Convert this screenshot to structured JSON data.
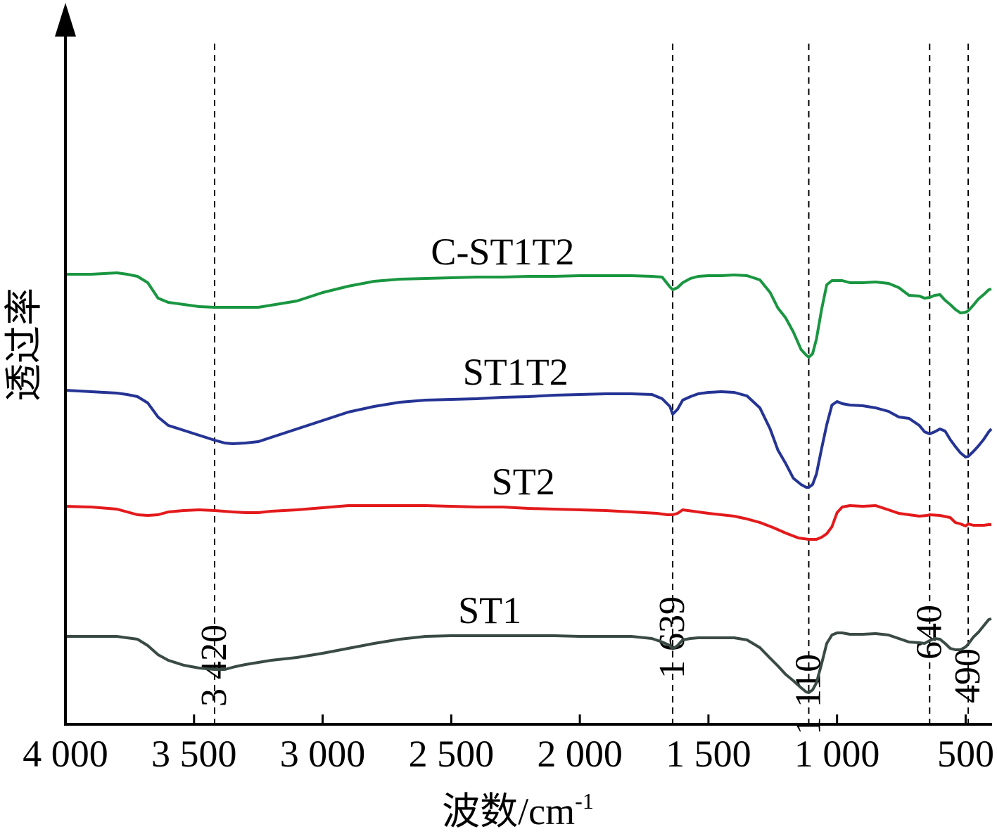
{
  "chart_data": {
    "type": "line",
    "title": "",
    "xlabel": "波数/cm",
    "xlabel_superscript": "-1",
    "ylabel": "透过率",
    "xlim": [
      4000,
      400
    ],
    "x_reversed": true,
    "y_ticks_shown": false,
    "grid": false,
    "x_ticks": [
      {
        "value": 4000,
        "label": "4 000"
      },
      {
        "value": 3500,
        "label": "3 500"
      },
      {
        "value": 3000,
        "label": "3 000"
      },
      {
        "value": 2500,
        "label": "2 500"
      },
      {
        "value": 2000,
        "label": "2 000"
      },
      {
        "value": 1500,
        "label": "1 500"
      },
      {
        "value": 1000,
        "label": "1 000"
      },
      {
        "value": 500,
        "label": "500"
      }
    ],
    "reference_lines": [
      {
        "x": 3420,
        "label": "3 420"
      },
      {
        "x": 1639,
        "label": "1 639"
      },
      {
        "x": 1110,
        "label": "1 110"
      },
      {
        "x": 640,
        "label": "640"
      },
      {
        "x": 490,
        "label": "490"
      }
    ],
    "series": [
      {
        "name": "C-ST1T2",
        "color": "#1a9641",
        "x": [
          4000,
          3900,
          3800,
          3760,
          3720,
          3680,
          3640,
          3600,
          3540,
          3480,
          3420,
          3350,
          3300,
          3250,
          3200,
          3100,
          3000,
          2900,
          2800,
          2700,
          2600,
          2500,
          2400,
          2300,
          2200,
          2100,
          2000,
          1900,
          1800,
          1720,
          1680,
          1650,
          1639,
          1620,
          1600,
          1570,
          1540,
          1500,
          1450,
          1400,
          1350,
          1300,
          1260,
          1230,
          1200,
          1170,
          1140,
          1120,
          1110,
          1095,
          1080,
          1060,
          1040,
          1020,
          1000,
          980,
          950,
          900,
          850,
          800,
          760,
          720,
          680,
          660,
          640,
          620,
          600,
          580,
          560,
          540,
          520,
          500,
          490,
          470,
          450,
          430,
          410,
          400
        ],
        "y": [
          0.64,
          0.64,
          0.642,
          0.64,
          0.637,
          0.628,
          0.606,
          0.6,
          0.597,
          0.594,
          0.593,
          0.593,
          0.593,
          0.593,
          0.596,
          0.602,
          0.614,
          0.623,
          0.63,
          0.633,
          0.634,
          0.635,
          0.636,
          0.636,
          0.637,
          0.637,
          0.638,
          0.638,
          0.638,
          0.637,
          0.636,
          0.622,
          0.618,
          0.621,
          0.628,
          0.634,
          0.637,
          0.638,
          0.638,
          0.639,
          0.638,
          0.632,
          0.614,
          0.592,
          0.578,
          0.558,
          0.533,
          0.525,
          0.522,
          0.527,
          0.548,
          0.59,
          0.625,
          0.631,
          0.631,
          0.631,
          0.628,
          0.628,
          0.629,
          0.627,
          0.621,
          0.61,
          0.609,
          0.606,
          0.607,
          0.61,
          0.611,
          0.603,
          0.597,
          0.59,
          0.585,
          0.586,
          0.588,
          0.596,
          0.605,
          0.611,
          0.618,
          0.619
        ]
      },
      {
        "name": "ST1T2",
        "color": "#253494",
        "x": [
          4000,
          3900,
          3800,
          3760,
          3720,
          3680,
          3640,
          3600,
          3540,
          3480,
          3420,
          3380,
          3350,
          3300,
          3250,
          3200,
          3100,
          3000,
          2900,
          2800,
          2700,
          2600,
          2500,
          2400,
          2300,
          2200,
          2100,
          2000,
          1900,
          1800,
          1720,
          1680,
          1650,
          1639,
          1620,
          1600,
          1570,
          1540,
          1500,
          1450,
          1400,
          1350,
          1300,
          1260,
          1230,
          1200,
          1170,
          1140,
          1120,
          1110,
          1095,
          1080,
          1060,
          1040,
          1020,
          1000,
          980,
          950,
          900,
          850,
          800,
          760,
          720,
          680,
          660,
          640,
          620,
          600,
          580,
          560,
          540,
          520,
          500,
          490,
          470,
          450,
          430,
          410,
          400
        ],
        "y": [
          0.475,
          0.473,
          0.471,
          0.469,
          0.466,
          0.457,
          0.437,
          0.425,
          0.418,
          0.411,
          0.404,
          0.4,
          0.399,
          0.4,
          0.402,
          0.408,
          0.42,
          0.432,
          0.444,
          0.452,
          0.458,
          0.461,
          0.462,
          0.463,
          0.465,
          0.466,
          0.468,
          0.469,
          0.47,
          0.47,
          0.469,
          0.463,
          0.452,
          0.441,
          0.448,
          0.461,
          0.466,
          0.47,
          0.472,
          0.473,
          0.472,
          0.467,
          0.45,
          0.42,
          0.39,
          0.371,
          0.35,
          0.341,
          0.337,
          0.337,
          0.341,
          0.356,
          0.392,
          0.426,
          0.454,
          0.459,
          0.456,
          0.454,
          0.453,
          0.45,
          0.445,
          0.437,
          0.435,
          0.425,
          0.416,
          0.413,
          0.416,
          0.42,
          0.417,
          0.405,
          0.395,
          0.386,
          0.38,
          0.381,
          0.388,
          0.396,
          0.405,
          0.416,
          0.42
        ]
      },
      {
        "name": "ST2",
        "color": "#e31a1c",
        "x": [
          4000,
          3900,
          3800,
          3720,
          3680,
          3640,
          3600,
          3540,
          3480,
          3420,
          3350,
          3300,
          3250,
          3200,
          3100,
          3000,
          2900,
          2800,
          2700,
          2600,
          2500,
          2400,
          2300,
          2200,
          2100,
          2000,
          1900,
          1800,
          1700,
          1660,
          1639,
          1620,
          1600,
          1560,
          1500,
          1450,
          1400,
          1350,
          1300,
          1250,
          1200,
          1150,
          1110,
          1080,
          1060,
          1040,
          1020,
          1000,
          980,
          950,
          900,
          850,
          800,
          760,
          720,
          680,
          650,
          640,
          600,
          560,
          540,
          520,
          500,
          490,
          470,
          450,
          430,
          410,
          400
        ],
        "y": [
          0.31,
          0.309,
          0.306,
          0.298,
          0.297,
          0.298,
          0.302,
          0.304,
          0.305,
          0.304,
          0.302,
          0.301,
          0.301,
          0.303,
          0.305,
          0.308,
          0.311,
          0.311,
          0.311,
          0.311,
          0.31,
          0.309,
          0.309,
          0.307,
          0.306,
          0.305,
          0.304,
          0.302,
          0.3,
          0.298,
          0.298,
          0.3,
          0.305,
          0.303,
          0.3,
          0.298,
          0.296,
          0.292,
          0.287,
          0.28,
          0.272,
          0.265,
          0.263,
          0.263,
          0.266,
          0.271,
          0.281,
          0.301,
          0.309,
          0.311,
          0.31,
          0.311,
          0.305,
          0.3,
          0.298,
          0.296,
          0.297,
          0.298,
          0.297,
          0.294,
          0.287,
          0.285,
          0.282,
          0.285,
          0.283,
          0.283,
          0.283,
          0.284,
          0.284
        ]
      },
      {
        "name": "ST1",
        "color": "#3a4a45",
        "x": [
          4000,
          3900,
          3800,
          3760,
          3720,
          3680,
          3640,
          3600,
          3540,
          3480,
          3420,
          3380,
          3340,
          3300,
          3250,
          3200,
          3100,
          3000,
          2900,
          2800,
          2700,
          2600,
          2500,
          2400,
          2300,
          2200,
          2100,
          2000,
          1900,
          1800,
          1720,
          1680,
          1650,
          1639,
          1620,
          1600,
          1570,
          1540,
          1500,
          1450,
          1400,
          1350,
          1300,
          1260,
          1230,
          1200,
          1170,
          1140,
          1120,
          1110,
          1095,
          1080,
          1060,
          1040,
          1020,
          1000,
          980,
          950,
          900,
          850,
          800,
          760,
          720,
          680,
          660,
          640,
          620,
          600,
          580,
          560,
          540,
          520,
          500,
          490,
          470,
          450,
          430,
          410,
          400
        ],
        "y": [
          0.125,
          0.125,
          0.125,
          0.123,
          0.121,
          0.112,
          0.099,
          0.091,
          0.084,
          0.08,
          0.078,
          0.078,
          0.082,
          0.085,
          0.088,
          0.091,
          0.095,
          0.101,
          0.108,
          0.115,
          0.121,
          0.125,
          0.126,
          0.126,
          0.126,
          0.126,
          0.126,
          0.125,
          0.125,
          0.125,
          0.122,
          0.117,
          0.112,
          0.107,
          0.112,
          0.12,
          0.122,
          0.123,
          0.123,
          0.123,
          0.123,
          0.12,
          0.109,
          0.094,
          0.083,
          0.071,
          0.062,
          0.052,
          0.046,
          0.045,
          0.049,
          0.059,
          0.086,
          0.115,
          0.127,
          0.13,
          0.13,
          0.128,
          0.128,
          0.129,
          0.127,
          0.122,
          0.117,
          0.116,
          0.115,
          0.119,
          0.122,
          0.121,
          0.115,
          0.108,
          0.106,
          0.106,
          0.11,
          0.114,
          0.124,
          0.131,
          0.14,
          0.149,
          0.15
        ]
      }
    ]
  }
}
